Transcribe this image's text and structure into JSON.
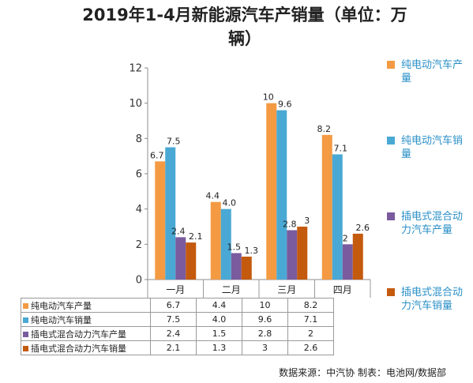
{
  "title_line1": "2019年1-4月新能源汽车产销量（单位：万",
  "title_line2": "辆）",
  "footer": "数据来源：中汽协  制表：电池网/数据部",
  "colors": {
    "bev_production": "#f39a43",
    "bev_sales": "#49a9d4",
    "phev_production": "#7a5b9e",
    "phev_sales": "#c45a0e",
    "legend_text": "#2a8fc7",
    "axis": "#8c8c8c"
  },
  "chart_data": {
    "type": "bar",
    "title": "2019年1-4月新能源汽车产销量（单位：万辆）",
    "categories": [
      "一月",
      "二月",
      "三月",
      "四月"
    ],
    "ylim": [
      0,
      12
    ],
    "yticks": [
      0,
      2,
      4,
      6,
      8,
      10,
      12
    ],
    "grid": false,
    "legend_position": "right",
    "series": [
      {
        "name": "纯电动汽车产量",
        "values": [
          6.7,
          4.4,
          10,
          8.2
        ],
        "labels": [
          "6.7",
          "4.4",
          "10",
          "8.2"
        ],
        "table_values": [
          "6.7",
          "4.4",
          "10",
          "8.2"
        ]
      },
      {
        "name": "纯电动汽车销量",
        "values": [
          7.5,
          4.0,
          9.6,
          7.1
        ],
        "labels": [
          "7.5",
          "4.0",
          "9.6",
          "7.1"
        ],
        "table_values": [
          "7.5",
          "4.0",
          "9.6",
          "7.1"
        ]
      },
      {
        "name": "插电式混合动力汽车产量",
        "values": [
          2.4,
          1.5,
          2.8,
          2
        ],
        "labels": [
          "2.4",
          "1.5",
          "2.8",
          "2"
        ],
        "table_values": [
          "2.4",
          "1.5",
          "2.8",
          "2"
        ]
      },
      {
        "name": "插电式混合动力汽车销量",
        "values": [
          2.1,
          1.3,
          3,
          2.6
        ],
        "labels": [
          "2.1",
          "1.3",
          "3",
          "2.6"
        ],
        "table_values": [
          "2.1",
          "1.3",
          "3",
          "2.6"
        ]
      }
    ]
  }
}
